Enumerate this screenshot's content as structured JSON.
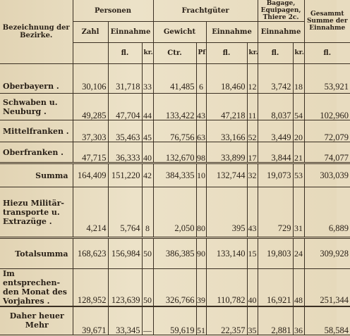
{
  "headers": {
    "bezirke": "Bezeichnung der Bezirke.",
    "personen": "Personen",
    "fracht": "Frachtgüter",
    "bagage": "Bagage, Equipagen, Thiere 2c.",
    "gesamt": "Gesammt Summe der Einnahme",
    "zahl": "Zahl",
    "einnahme": "Einnahme",
    "gewicht": "Gewicht",
    "einnahme2": "Einnahme",
    "einnahme3": "Einnahme",
    "unit_fl": "fl.",
    "unit_kr": "kr.",
    "unit_ctr": "Ctr.",
    "unit_pf": "Pf",
    "unit_fl2": "fl.",
    "unit_kr2": "kr.",
    "unit_fl3": "fl.",
    "unit_kr3": "kr.",
    "unit_fl4": "fl."
  },
  "rows": [
    {
      "label": "Oberbayern .",
      "zahl": "30,106",
      "p_fl": "31,718",
      "p_kr": "33",
      "gewicht": "41,485",
      "pf": "6",
      "f_fl": "18,460",
      "f_kr": "12",
      "b_fl": "3,742",
      "b_kr": "18",
      "gesamt": "53,921"
    },
    {
      "label": "Schwaben u. Neuburg .",
      "zahl": "49,285",
      "p_fl": "47,704",
      "p_kr": "44",
      "gewicht": "133,422",
      "pf": "43",
      "f_fl": "47,218",
      "f_kr": "11",
      "b_fl": "8,037",
      "b_kr": "54",
      "gesamt": "102,960"
    },
    {
      "label": "Mittelfranken .",
      "zahl": "37,303",
      "p_fl": "35,463",
      "p_kr": "45",
      "gewicht": "76,756",
      "pf": "63",
      "f_fl": "33,166",
      "f_kr": "52",
      "b_fl": "3,449",
      "b_kr": "20",
      "gesamt": "72,079"
    },
    {
      "label": "Oberfranken .",
      "zahl": "47,715",
      "p_fl": "36,333",
      "p_kr": "40",
      "gewicht": "132,670",
      "pf": "98",
      "f_fl": "33,899",
      "f_kr": "17",
      "b_fl": "3,844",
      "b_kr": "21",
      "gesamt": "74,077"
    },
    {
      "label": "Summa",
      "zahl": "164,409",
      "p_fl": "151,220",
      "p_kr": "42",
      "gewicht": "384,335",
      "pf": "10",
      "f_fl": "132,744",
      "f_kr": "32",
      "b_fl": "19,073",
      "b_kr": "53",
      "gesamt": "303,039"
    },
    {
      "label": "Hiezu Militär-transporte u. Extrazüge .",
      "zahl": "4,214",
      "p_fl": "5,764",
      "p_kr": "8",
      "gewicht": "2,050",
      "pf": "80",
      "f_fl": "395",
      "f_kr": "43",
      "b_fl": "729",
      "b_kr": "31",
      "gesamt": "6,889"
    },
    {
      "label": "Totalsumma",
      "zahl": "168,623",
      "p_fl": "156,984",
      "p_kr": "50",
      "gewicht": "386,385",
      "pf": "90",
      "f_fl": "133,140",
      "f_kr": "15",
      "b_fl": "19,803",
      "b_kr": "24",
      "gesamt": "309,928"
    },
    {
      "label": "Im entsprechen-den Monat des Vorjahres .",
      "zahl": "128,952",
      "p_fl": "123,639",
      "p_kr": "50",
      "gewicht": "326,766",
      "pf": "39",
      "f_fl": "110,782",
      "f_kr": "40",
      "b_fl": "16,921",
      "b_kr": "48",
      "gesamt": "251,344"
    },
    {
      "label": "Daher heuer Mehr",
      "zahl": "39,671",
      "p_fl": "33,345",
      "p_kr": "—",
      "gewicht": "59,619",
      "pf": "51",
      "f_fl": "22,357",
      "f_kr": "35",
      "b_fl": "2,881",
      "b_kr": "36",
      "gesamt": "58,584"
    }
  ]
}
